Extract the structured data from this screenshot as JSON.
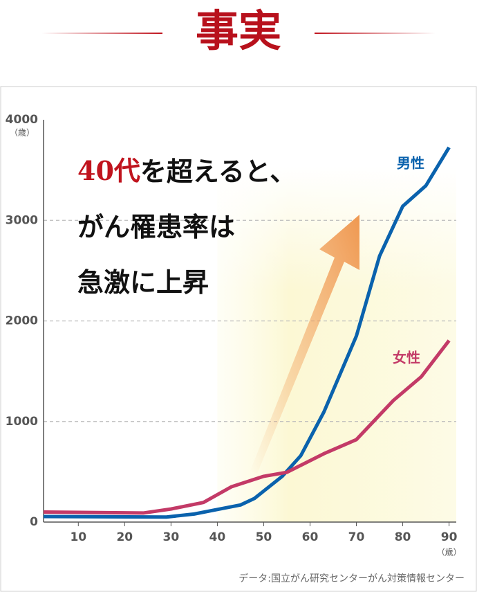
{
  "heading": "事実",
  "chart_data": {
    "type": "line",
    "annotation": {
      "highlight": "40代",
      "lines": [
        "を超えると、",
        "がん罹患率は",
        "急激に上昇"
      ]
    },
    "y_unit": "（歳）",
    "x_unit": "（歳）",
    "source": "データ:国立がん研究センターがん対策情報センター",
    "xlim": [
      2.5,
      92
    ],
    "ylim": [
      0,
      4000
    ],
    "xticks": [
      10,
      20,
      30,
      40,
      50,
      60,
      70,
      80,
      90
    ],
    "yticks": [
      0,
      1000,
      2000,
      3000,
      4000
    ],
    "highlight_xtick": 40,
    "highlight_color": "#c0141e",
    "grid": true,
    "series": [
      {
        "name": "男性",
        "color": "#0a62ad",
        "x": [
          2.5,
          29,
          35,
          40,
          45,
          48,
          54,
          58,
          63,
          70,
          75,
          80,
          85,
          90
        ],
        "values": [
          55,
          50,
          80,
          125,
          170,
          235,
          455,
          660,
          1095,
          1850,
          2645,
          3140,
          3345,
          3725
        ]
      },
      {
        "name": "女性",
        "color": "#c33a67",
        "x": [
          2.5,
          24,
          30,
          37,
          43,
          50,
          55,
          63,
          70,
          78,
          84,
          90
        ],
        "values": [
          100,
          90,
          130,
          195,
          350,
          455,
          495,
          680,
          820,
          1210,
          1445,
          1805
        ]
      }
    ]
  }
}
